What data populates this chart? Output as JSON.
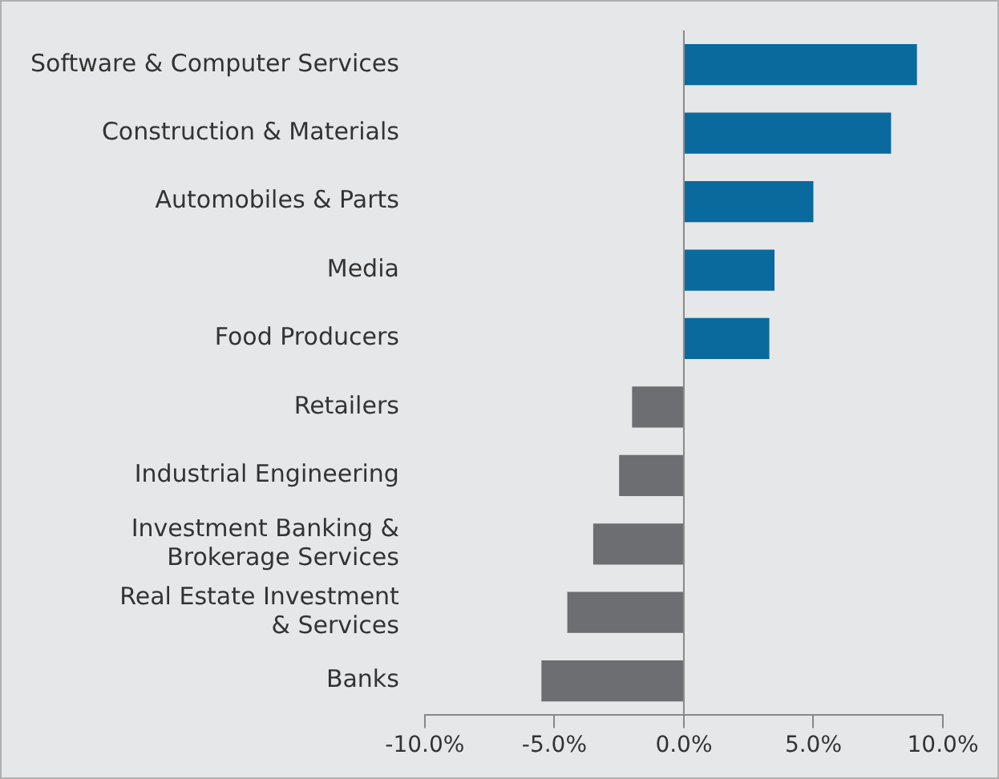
{
  "chart_data": {
    "type": "bar",
    "orientation": "horizontal",
    "categories": [
      "Software & Computer Services",
      "Construction & Materials",
      "Automobiles & Parts",
      "Media",
      "Food Producers",
      "Retailers",
      "Industrial Engineering",
      "Investment Banking &\nBrokerage Services",
      "Real Estate Investment\n& Services",
      "Banks"
    ],
    "values": [
      9.0,
      8.0,
      5.0,
      3.5,
      3.3,
      -2.0,
      -2.5,
      -3.5,
      -4.5,
      -5.5
    ],
    "colors": [
      "#0a6a9e",
      "#0a6a9e",
      "#0a6a9e",
      "#0a6a9e",
      "#0a6a9e",
      "#6d6e71",
      "#6d6e71",
      "#6d6e71",
      "#6d6e71",
      "#6d6e71"
    ],
    "xlim": [
      -10,
      10
    ],
    "xticks": [
      {
        "value": -10,
        "label": "-10.0%"
      },
      {
        "value": -5,
        "label": "-5.0%"
      },
      {
        "value": 0,
        "label": "0.0%"
      },
      {
        "value": 5,
        "label": "5.0%"
      },
      {
        "value": 10,
        "label": "10.0%"
      }
    ],
    "ref_lines": [
      {
        "axis": "x",
        "value": 0,
        "color": "#888888"
      }
    ],
    "grid": false,
    "legend": false
  }
}
